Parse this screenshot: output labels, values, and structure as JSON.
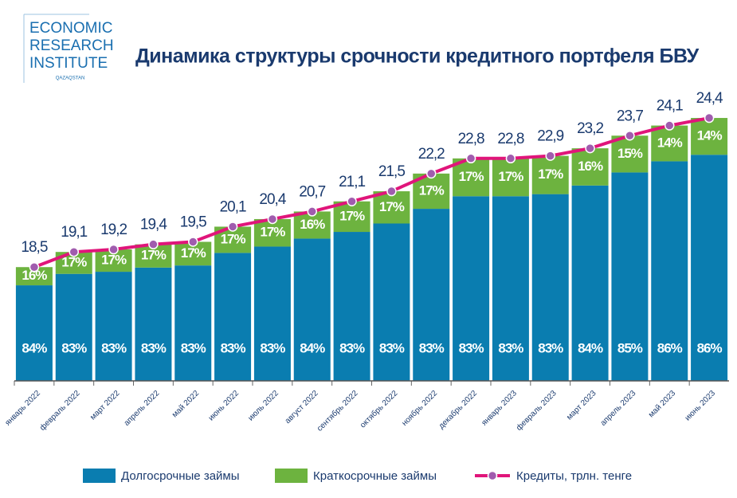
{
  "logo": {
    "lines": [
      "ECONOMIC",
      "RESEARCH",
      "INSTITUTE"
    ],
    "sub": "QAZAQSTAN"
  },
  "chart_data": {
    "type": "bar",
    "title": "Динамика структуры срочности кредитного портфеля БВУ",
    "categories": [
      "январь 2022",
      "февраль 2022",
      "март 2022",
      "апрель 2022",
      "май 2022",
      "июнь 2022",
      "июль 2022",
      "август 2022",
      "сентябрь 2022",
      "октябрь 2022",
      "ноябрь 2022",
      "декабрь 2022",
      "январь 2023",
      "февраль 2023",
      "март 2023",
      "апрель 2023",
      "май 2023",
      "июнь 2023"
    ],
    "ylim": [
      14,
      25
    ],
    "series": [
      {
        "name": "Долгосрочные займы",
        "color": "#0a7db0",
        "values": [
          84,
          83,
          83,
          83,
          83,
          83,
          83,
          84,
          83,
          83,
          83,
          83,
          83,
          83,
          84,
          85,
          86,
          86
        ],
        "value_labels": [
          "84%",
          "83%",
          "83%",
          "83%",
          "83%",
          "83%",
          "83%",
          "84%",
          "83%",
          "83%",
          "83%",
          "83%",
          "83%",
          "83%",
          "84%",
          "85%",
          "86%",
          "86%"
        ]
      },
      {
        "name": "Краткосрочные займы",
        "color": "#6db33f",
        "values": [
          16,
          17,
          17,
          17,
          17,
          17,
          17,
          16,
          17,
          17,
          17,
          17,
          17,
          17,
          16,
          15,
          14,
          14
        ],
        "value_labels": [
          "16%",
          "17%",
          "17%",
          "17%",
          "17%",
          "17%",
          "17%",
          "16%",
          "17%",
          "17%",
          "17%",
          "17%",
          "17%",
          "17%",
          "16%",
          "15%",
          "14%",
          "14%"
        ]
      },
      {
        "name": "Кредиты, трлн. тенге",
        "type": "line",
        "color": "#e0157a",
        "values": [
          18.5,
          19.1,
          19.2,
          19.4,
          19.5,
          20.1,
          20.4,
          20.7,
          21.1,
          21.5,
          22.2,
          22.8,
          22.8,
          22.9,
          23.2,
          23.7,
          24.1,
          24.4
        ],
        "value_labels": [
          "18,5",
          "19,1",
          "19,2",
          "19,4",
          "19,5",
          "20,1",
          "20,4",
          "20,7",
          "21,1",
          "21,5",
          "22,2",
          "22,8",
          "22,8",
          "22,9",
          "23,2",
          "23,7",
          "24,1",
          "24,4"
        ]
      }
    ]
  }
}
